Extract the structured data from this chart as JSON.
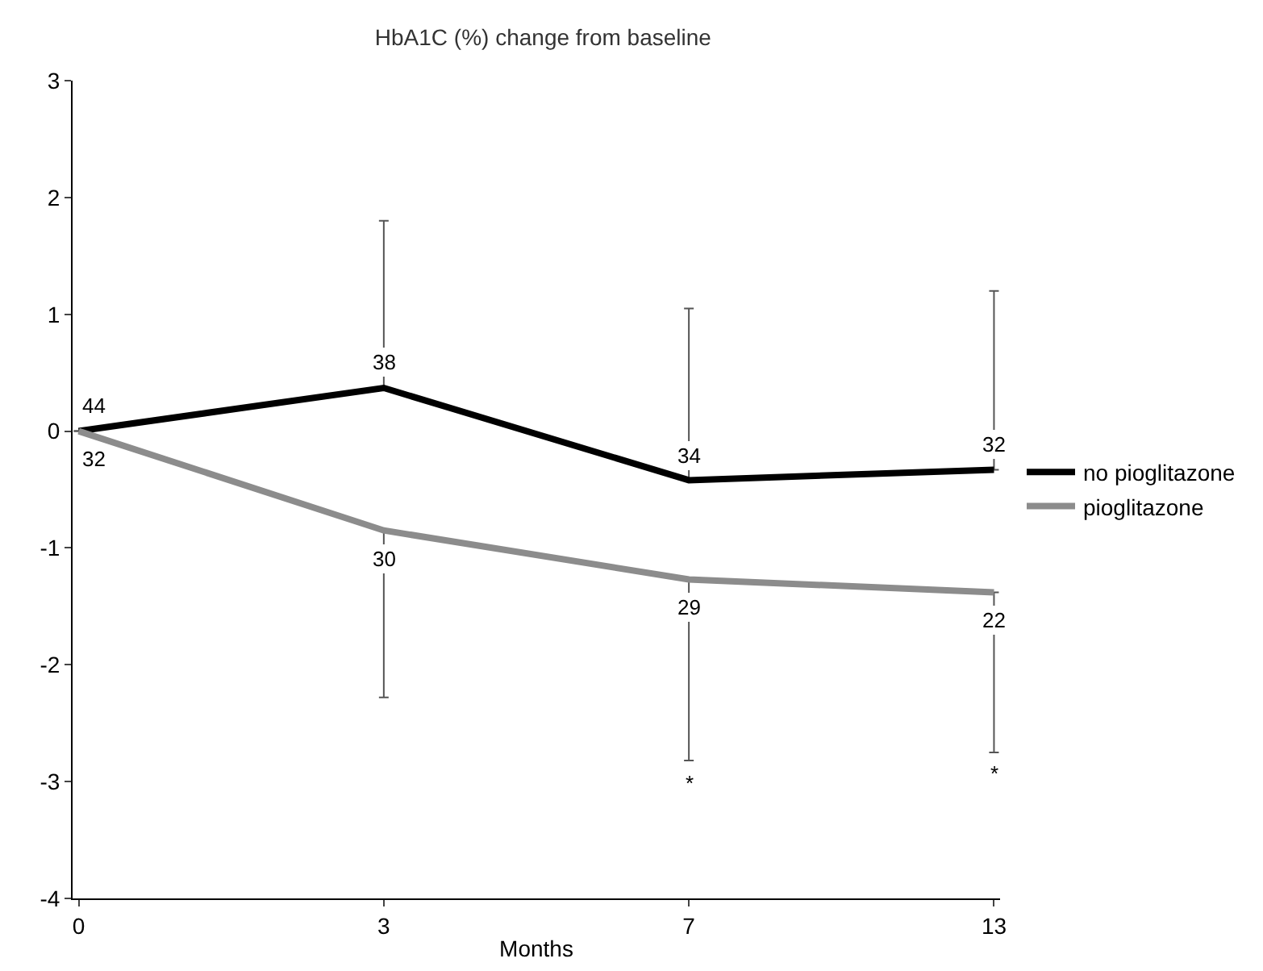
{
  "chart_data": {
    "type": "line",
    "title": "HbA1C (%) change from baseline",
    "xlabel": "Months",
    "categories": [
      "0",
      "3",
      "7",
      "13"
    ],
    "series": [
      {
        "name": "no pioglitazone",
        "color": "#000000",
        "values": [
          0,
          0.37,
          -0.42,
          -0.33
        ],
        "errors": [
          null,
          [
            0.37,
            1.8
          ],
          [
            -0.42,
            1.05
          ],
          [
            -0.33,
            1.2
          ]
        ]
      },
      {
        "name": "pioglitazone",
        "color": "#8c8c8c",
        "values": [
          0,
          -0.85,
          -1.27,
          -1.38
        ],
        "errors": [
          null,
          [
            -2.28,
            -0.85
          ],
          [
            -2.82,
            -1.27
          ],
          [
            -2.75,
            -1.38
          ]
        ]
      }
    ],
    "ylim": [
      -4,
      3
    ],
    "yticks": [
      -4,
      -3,
      -2,
      -1,
      0,
      1,
      2,
      3
    ],
    "grid": false,
    "legend": "right",
    "marker": "none",
    "line_style": "solid",
    "annotations": [
      {
        "text": "44",
        "x": "0",
        "y": 0
      },
      {
        "text": "32",
        "x": "0",
        "y": 0
      },
      {
        "text": "38",
        "x": "3",
        "y": 0.37
      },
      {
        "text": "34",
        "x": "7",
        "y": -0.42
      },
      {
        "text": "32",
        "x": "13",
        "y": -0.33
      },
      {
        "text": "30",
        "x": "3",
        "y": -0.85
      },
      {
        "text": "29",
        "x": "7",
        "y": -1.27
      },
      {
        "text": "22",
        "x": "13",
        "y": -1.38
      },
      {
        "text": "*",
        "x": "7",
        "y": -2.82
      },
      {
        "text": "*",
        "x": "13",
        "y": -2.75
      }
    ]
  }
}
